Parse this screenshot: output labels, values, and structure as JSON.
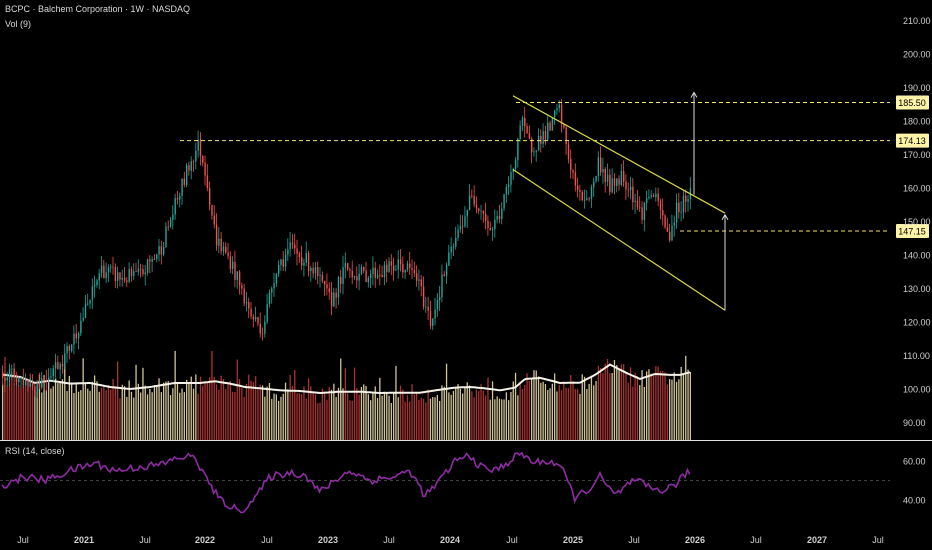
{
  "chart_data": {
    "type": "candlestick",
    "header": {
      "title": "BCPC · Balchem Corporation · 1W · NASDAQ",
      "volume_label": "Vol (9)",
      "rsi_label": "RSI (14, close)"
    },
    "x_axis": {
      "labels": [
        "Jul",
        "2021",
        "Jul",
        "2022",
        "Jul",
        "2023",
        "Jul",
        "2024",
        "Jul",
        "2025",
        "Jul",
        "2026",
        "Jul",
        "2027",
        "Jul"
      ],
      "bold_labels": [
        "2021",
        "2022",
        "2023",
        "2024",
        "2025",
        "2026",
        "2027"
      ]
    },
    "price_axis": {
      "ticks": [
        210,
        200,
        190,
        180,
        170,
        160,
        150,
        140,
        130,
        120,
        110,
        100,
        90
      ],
      "tick_labels": [
        "210.00",
        "200.00",
        "190.00",
        "180.00",
        "170.00",
        "160.00",
        "150.00",
        "140.00",
        "130.00",
        "120.00",
        "110.00",
        "100.00",
        "90.00"
      ]
    },
    "rsi_axis": {
      "ticks": [
        60,
        40
      ],
      "tick_labels": [
        "60.00",
        "40.00"
      ],
      "mid_line": 50
    },
    "levels": [
      {
        "value": 185.5,
        "label": "185.50"
      },
      {
        "value": 174.13,
        "label": "174.13"
      },
      {
        "value": 147.15,
        "label": "147.15"
      }
    ],
    "trend_channel": {
      "upper": [
        [
          513,
          187.5
        ],
        [
          725,
          152.5
        ]
      ],
      "lower": [
        [
          513,
          165.5
        ],
        [
          725,
          123.5
        ]
      ]
    },
    "projection_arrows": {
      "up": {
        "x": 694,
        "from": 158,
        "to": 188.5
      },
      "channel": {
        "x": 725,
        "from": 123.5,
        "to": 152
      }
    },
    "price_anchors": [
      [
        5,
        105
      ],
      [
        35,
        101
      ],
      [
        65,
        110
      ],
      [
        90,
        127
      ],
      [
        100,
        136
      ],
      [
        120,
        133
      ],
      [
        140,
        134
      ],
      [
        160,
        142
      ],
      [
        175,
        155
      ],
      [
        190,
        168
      ],
      [
        198,
        173
      ],
      [
        205,
        165
      ],
      [
        215,
        145
      ],
      [
        230,
        138
      ],
      [
        250,
        122
      ],
      [
        262,
        118
      ],
      [
        275,
        136
      ],
      [
        290,
        142
      ],
      [
        310,
        137
      ],
      [
        330,
        126
      ],
      [
        345,
        136
      ],
      [
        360,
        134
      ],
      [
        380,
        135
      ],
      [
        400,
        137
      ],
      [
        415,
        134
      ],
      [
        430,
        120
      ],
      [
        445,
        136
      ],
      [
        458,
        147
      ],
      [
        470,
        157
      ],
      [
        480,
        155
      ],
      [
        490,
        147
      ],
      [
        500,
        153
      ],
      [
        512,
        165
      ],
      [
        520,
        180
      ],
      [
        530,
        172
      ],
      [
        540,
        175
      ],
      [
        550,
        178
      ],
      [
        558,
        184
      ],
      [
        568,
        169
      ],
      [
        578,
        157
      ],
      [
        590,
        158
      ],
      [
        598,
        168
      ],
      [
        610,
        160
      ],
      [
        620,
        164
      ],
      [
        630,
        160
      ],
      [
        640,
        152
      ],
      [
        650,
        159
      ],
      [
        660,
        153
      ],
      [
        668,
        145
      ],
      [
        675,
        153
      ],
      [
        680,
        155
      ],
      [
        690,
        159
      ]
    ],
    "volume_line_anchors": [
      [
        5,
        104.2
      ],
      [
        20,
        103.6
      ],
      [
        35,
        101.8
      ],
      [
        50,
        102.5
      ],
      [
        70,
        101.6
      ],
      [
        90,
        101.8
      ],
      [
        110,
        100.6
      ],
      [
        130,
        100
      ],
      [
        150,
        100.6
      ],
      [
        175,
        101.8
      ],
      [
        200,
        101.8
      ],
      [
        215,
        102.3
      ],
      [
        230,
        101.6
      ],
      [
        245,
        100.6
      ],
      [
        260,
        100.2
      ],
      [
        280,
        99.6
      ],
      [
        300,
        99.4
      ],
      [
        320,
        98.8
      ],
      [
        340,
        99.2
      ],
      [
        360,
        99.2
      ],
      [
        380,
        98.8
      ],
      [
        400,
        98.9
      ],
      [
        420,
        98.9
      ],
      [
        440,
        99.8
      ],
      [
        455,
        100.4
      ],
      [
        470,
        100.6
      ],
      [
        485,
        100.2
      ],
      [
        500,
        99.6
      ],
      [
        515,
        100.4
      ],
      [
        525,
        103
      ],
      [
        540,
        103.3
      ],
      [
        560,
        101.8
      ],
      [
        580,
        101.9
      ],
      [
        595,
        104.2
      ],
      [
        610,
        107.3
      ],
      [
        625,
        105
      ],
      [
        640,
        103
      ],
      [
        655,
        104.5
      ],
      [
        670,
        104.2
      ],
      [
        680,
        104.2
      ],
      [
        690,
        105
      ]
    ],
    "rsi_anchors": [
      [
        5,
        48
      ],
      [
        25,
        52
      ],
      [
        45,
        50
      ],
      [
        70,
        55
      ],
      [
        95,
        59
      ],
      [
        115,
        55
      ],
      [
        140,
        57
      ],
      [
        160,
        58
      ],
      [
        180,
        62
      ],
      [
        195,
        62
      ],
      [
        205,
        52
      ],
      [
        220,
        40
      ],
      [
        240,
        34
      ],
      [
        255,
        41
      ],
      [
        270,
        52
      ],
      [
        290,
        54
      ],
      [
        305,
        53
      ],
      [
        320,
        44
      ],
      [
        335,
        50
      ],
      [
        350,
        55
      ],
      [
        370,
        50
      ],
      [
        395,
        52
      ],
      [
        410,
        55
      ],
      [
        425,
        42
      ],
      [
        440,
        50
      ],
      [
        455,
        60
      ],
      [
        470,
        63
      ],
      [
        480,
        57
      ],
      [
        495,
        55
      ],
      [
        510,
        60
      ],
      [
        520,
        64
      ],
      [
        535,
        59
      ],
      [
        548,
        60
      ],
      [
        560,
        58
      ],
      [
        575,
        41
      ],
      [
        590,
        46
      ],
      [
        600,
        52
      ],
      [
        615,
        42
      ],
      [
        630,
        49
      ],
      [
        640,
        49
      ],
      [
        650,
        46
      ],
      [
        665,
        45
      ],
      [
        675,
        48
      ],
      [
        690,
        55
      ]
    ],
    "colors": {
      "up": "#26a69a",
      "down": "#ef5350",
      "volume_up": "#f5e6b3",
      "volume_down": "#c73b3b",
      "volume_line": "#f4f1e6",
      "rsi_line": "#8e2ca3",
      "channel": "#d8d84a",
      "levels": "#f3e26b",
      "arrows": "#d9d9d9"
    }
  }
}
